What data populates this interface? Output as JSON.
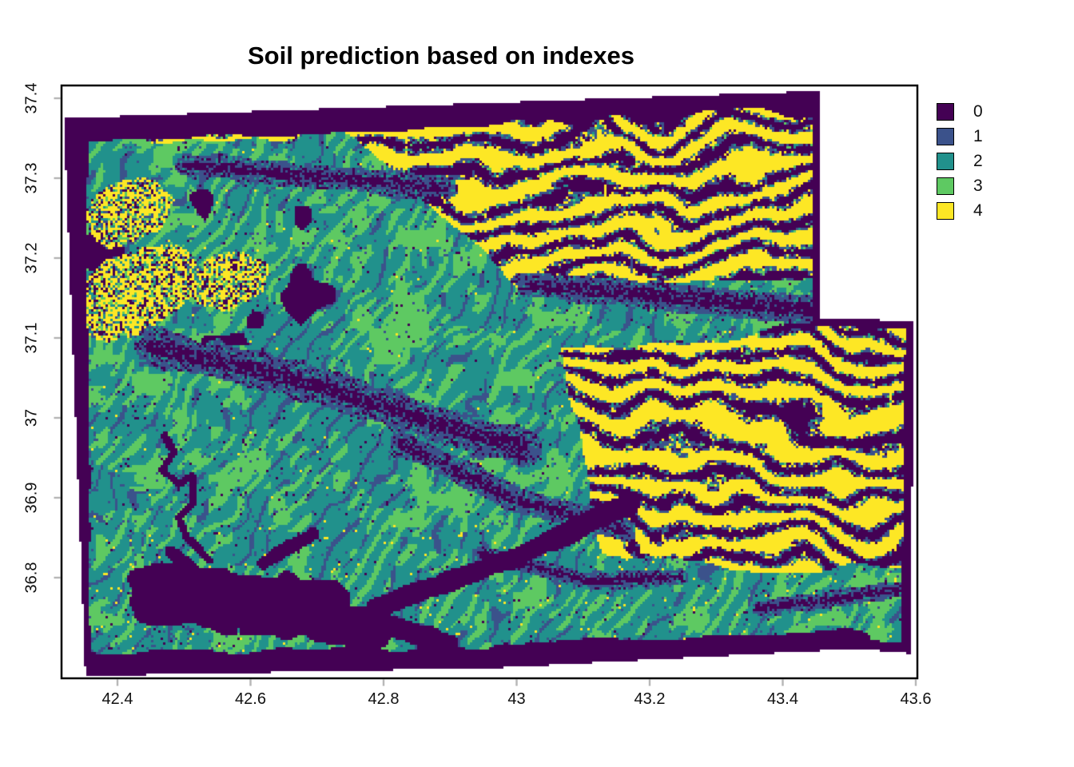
{
  "chart_data": {
    "type": "heatmap",
    "title": "Soil prediction based on indexes",
    "x_axis": {
      "label": "",
      "tick_labels": [
        "42.4",
        "42.6",
        "42.8",
        "43",
        "43.2",
        "43.4",
        "43.6"
      ],
      "range": [
        42.32,
        43.6
      ]
    },
    "y_axis": {
      "label": "",
      "tick_labels": [
        "37.4",
        "37.3",
        "37.2",
        "37.1",
        "37",
        "36.9",
        "36.8"
      ],
      "range": [
        36.68,
        37.41
      ]
    },
    "grid": false,
    "legend": {
      "position": "right",
      "entries": [
        {
          "label": "0",
          "color": "#440154"
        },
        {
          "label": "1",
          "color": "#3b528b"
        },
        {
          "label": "2",
          "color": "#21918c"
        },
        {
          "label": "3",
          "color": "#5ec962"
        },
        {
          "label": "4",
          "color": "#fde725"
        }
      ]
    },
    "classes": [
      {
        "value": 0,
        "color": "#440154"
      },
      {
        "value": 1,
        "color": "#3b528b"
      },
      {
        "value": 2,
        "color": "#21918c"
      },
      {
        "value": 3,
        "color": "#5ec962"
      },
      {
        "value": 4,
        "color": "#fde725"
      }
    ],
    "extent": {
      "lon_min": 42.32,
      "lon_max": 43.6,
      "lat_min": 36.68,
      "lat_max": 37.41
    },
    "pattern_summary": [
      "Slightly rotated two-swath classified raster; class-0 (dark purple) nodata border bands along all scene edges",
      "North-east quadrant: class 4 (yellow) dominant ridged mountain texture interbedded with class 0 and class 1 stripes",
      "West and centre: class 2 (teal) dominant with class 3 (green) dendritic drainage streaks, sparse class 1 speckle",
      "East-centre (lon>43, lat 36.9-37.1): second yellow/purple striped belt",
      "Dark blue/purple ridge bands crossing the teal zone WNW-ESE near lat 37.08 and 37.32",
      "Reservoir lake rendered as solid class 0 blob near lon 42.55-42.75, lat 36.78-36.82, with meandering river to the north",
      "Top-right rectangular notch and corners outside the swaths are white (no data)"
    ]
  },
  "plot": {
    "tick_color": "#b9b9b9",
    "box_color": "#000000"
  }
}
